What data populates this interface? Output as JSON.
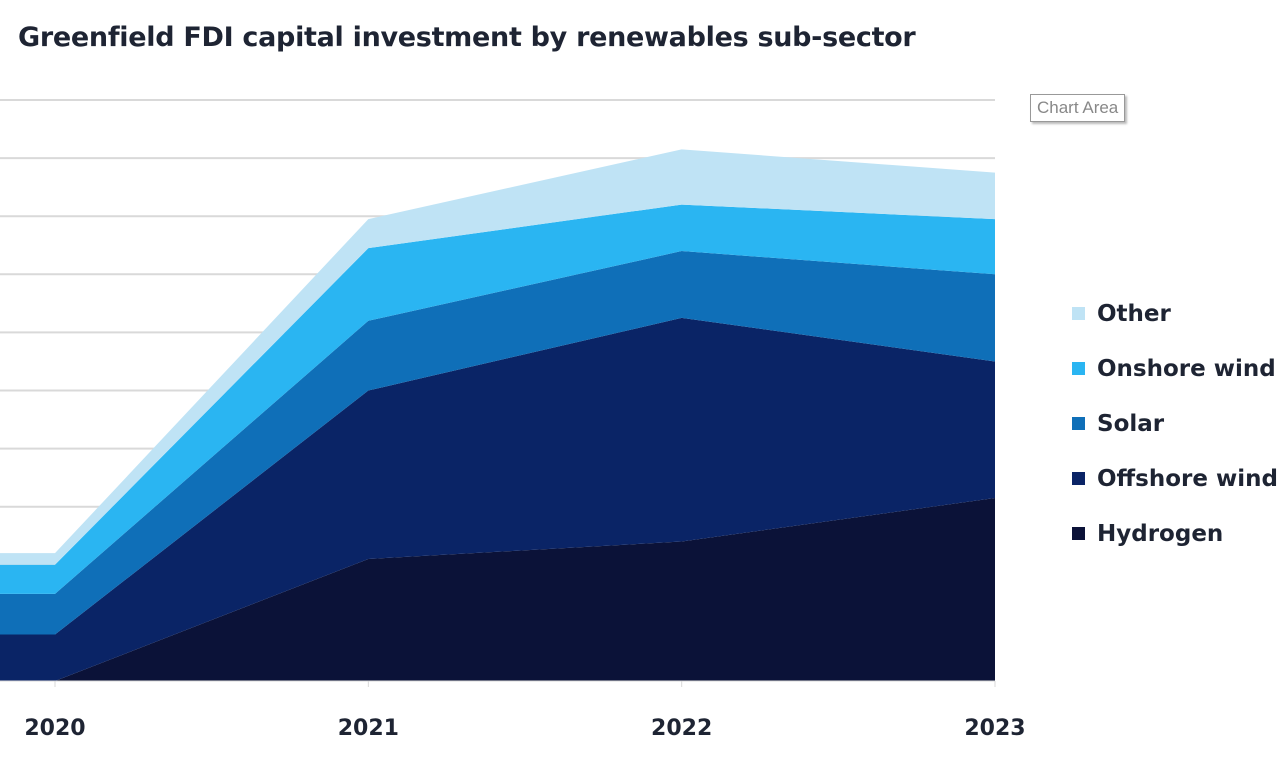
{
  "chart_data": {
    "type": "area",
    "stacked": true,
    "title": "Greenfield FDI capital investment by renewables sub-sector",
    "xlabel": "",
    "ylabel": "",
    "categories": [
      "2020",
      "2021",
      "2022",
      "2023"
    ],
    "ylim": [
      0,
      10
    ],
    "y_tick_labels_shown": false,
    "grid": true,
    "legend_position": "right",
    "series": [
      {
        "name": "Hydrogen",
        "color": "#0b1238",
        "values": [
          0,
          2.1,
          2.4,
          3.15
        ]
      },
      {
        "name": "Offshore wind",
        "color": "#0a2466",
        "values": [
          0.8,
          2.9,
          3.85,
          2.35
        ]
      },
      {
        "name": "Solar",
        "color": "#0f6fb8",
        "values": [
          0.7,
          1.2,
          1.15,
          1.5
        ]
      },
      {
        "name": "Onshore wind",
        "color": "#2ab5f2",
        "values": [
          0.5,
          1.25,
          0.8,
          0.95
        ]
      },
      {
        "name": "Other",
        "color": "#bfe3f5",
        "values": [
          0.2,
          0.5,
          0.95,
          0.8
        ]
      }
    ]
  },
  "tooltip": {
    "label": "Chart Area"
  }
}
